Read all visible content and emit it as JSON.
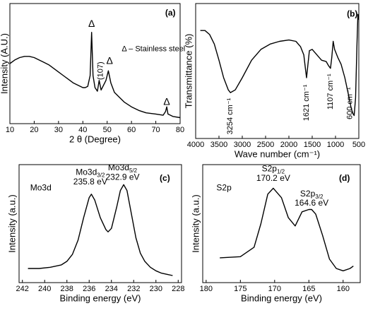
{
  "chart_data": [
    {
      "type": "line",
      "panel": "(a)",
      "xlabel": "2 θ (Degree)",
      "ylabel": "Intensity (A.U.)",
      "xlim": [
        10,
        80
      ],
      "xticks": [
        10,
        20,
        30,
        40,
        50,
        60,
        70,
        80
      ],
      "ylim": [
        0,
        100
      ],
      "x": [
        10,
        12,
        14,
        16,
        18,
        20,
        22,
        24,
        26,
        28,
        30,
        32,
        34,
        36,
        38,
        40,
        41,
        42,
        43,
        43.6,
        44.2,
        45,
        46,
        46.7,
        47.5,
        48.5,
        49.5,
        50.5,
        51.5,
        53,
        55,
        57,
        60,
        63,
        66,
        70,
        73,
        74,
        74.5,
        75,
        77,
        80
      ],
      "series": [
        {
          "color": "#000000",
          "values": [
            50,
            53,
            55,
            56,
            56,
            55,
            53,
            51,
            49,
            46,
            43,
            40,
            37,
            34,
            32,
            30,
            30,
            31,
            40,
            76,
            40,
            30,
            27,
            36,
            28,
            32,
            36,
            44,
            34,
            26,
            22,
            18,
            14,
            11,
            9,
            8,
            7,
            10,
            14,
            8,
            6,
            5
          ]
        }
      ],
      "annotations": [
        {
          "text": "Δ"
        },
        {
          "text": "(107)"
        },
        {
          "text": "Δ"
        },
        {
          "text": "Δ"
        },
        {
          "text": "Δ – Stainless steel"
        }
      ]
    },
    {
      "type": "line",
      "panel": "(b)",
      "xlabel": "Wave number (cm⁻¹)",
      "ylabel": "Transmittance (%)",
      "xlim": [
        4000,
        500
      ],
      "xticks": [
        4000,
        3500,
        3000,
        2500,
        2000,
        1500,
        1000,
        500
      ],
      "ylim": [
        0,
        100
      ],
      "x": [
        3900,
        3800,
        3700,
        3600,
        3500,
        3400,
        3300,
        3254,
        3150,
        3000,
        2800,
        2600,
        2400,
        2200,
        2000,
        1850,
        1750,
        1680,
        1640,
        1621,
        1600,
        1560,
        1500,
        1400,
        1300,
        1200,
        1150,
        1107,
        1080,
        1050,
        1020,
        950,
        880,
        800,
        720,
        660,
        620,
        600,
        570,
        540,
        520,
        505
      ],
      "series": [
        {
          "color": "#000000",
          "values": [
            80,
            80,
            77,
            70,
            58,
            45,
            36,
            34,
            36,
            45,
            58,
            66,
            70,
            72,
            73,
            72,
            68,
            62,
            50,
            45,
            52,
            65,
            66,
            62,
            58,
            57,
            54,
            52,
            60,
            72,
            66,
            60,
            55,
            45,
            32,
            22,
            18,
            17,
            30,
            70,
            92,
            88
          ]
        }
      ],
      "annotations": [
        {
          "text": "3254 cm⁻¹"
        },
        {
          "text": "1621 cm⁻¹"
        },
        {
          "text": "1107 cm⁻¹"
        },
        {
          "text": "600 cm⁻¹"
        }
      ]
    },
    {
      "type": "line",
      "panel": "(c)",
      "xlabel": "Binding energy (eV)",
      "ylabel": "Intensity (a.u.)",
      "xlim": [
        242.3,
        227.7
      ],
      "xticks": [
        242,
        240,
        238,
        236,
        234,
        232,
        230,
        228
      ],
      "ylim": [
        0,
        100
      ],
      "x": [
        241.5,
        240.5,
        239.5,
        238.5,
        238,
        237.5,
        237,
        236.5,
        236,
        235.8,
        235.5,
        235,
        234.5,
        234.3,
        234,
        233.5,
        233.2,
        232.9,
        232.6,
        232.2,
        231.8,
        231.4,
        231,
        230.5,
        230,
        229.5,
        229,
        228.5
      ],
      "series": [
        {
          "color": "#000000",
          "values": [
            12,
            12,
            13,
            15,
            18,
            24,
            36,
            55,
            72,
            75,
            70,
            55,
            45,
            43,
            46,
            65,
            78,
            83,
            78,
            58,
            38,
            25,
            18,
            13,
            10,
            8,
            7,
            6
          ]
        }
      ],
      "annotations": [
        {
          "text": "Mo3d"
        },
        {
          "text": "Mo3d",
          "sub": "3/2"
        },
        {
          "text": "235.8 eV"
        },
        {
          "text": "Mo3d",
          "sub": "5/2"
        },
        {
          "text": "232.9 eV"
        }
      ]
    },
    {
      "type": "line",
      "panel": "(d)",
      "xlabel": "Binding energy (eV)",
      "ylabel": "Intensity (a.u.)",
      "xlim": [
        180.5,
        157.5
      ],
      "xticks": [
        180,
        175,
        170,
        165,
        160
      ],
      "ylim": [
        0,
        100
      ],
      "x": [
        178,
        175,
        173,
        172,
        171,
        170.2,
        169,
        168,
        167,
        166,
        165,
        164.6,
        164,
        163,
        162,
        161,
        160,
        159,
        158.5
      ],
      "series": [
        {
          "color": "#000000",
          "values": [
            21,
            22,
            30,
            50,
            75,
            80,
            72,
            55,
            48,
            60,
            62,
            62,
            58,
            40,
            20,
            12,
            10,
            12,
            14
          ]
        }
      ],
      "annotations": [
        {
          "text": "S2p"
        },
        {
          "text": "S2p",
          "sub": "1/2"
        },
        {
          "text": "170.2 eV"
        },
        {
          "text": "S2p",
          "sub": "3/2"
        },
        {
          "text": "164.6 eV"
        }
      ]
    }
  ]
}
